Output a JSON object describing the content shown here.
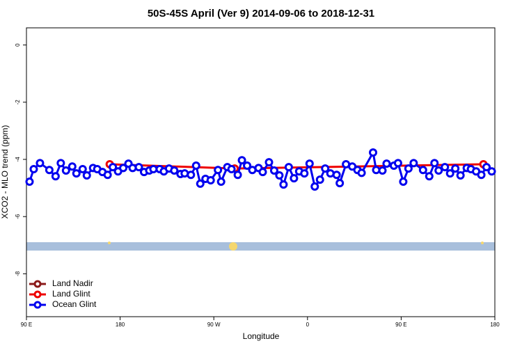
{
  "chart_data": {
    "type": "line",
    "title": "50S-45S April (Ver 9)   2014-09-06 to 2018-12-31",
    "x_label": "Longitude",
    "y_label": "XCO2 - MLO trend (ppm)",
    "xlim": [
      90,
      540
    ],
    "xticks": [
      {
        "value": 90,
        "label": "90 E"
      },
      {
        "value": 180,
        "label": "180"
      },
      {
        "value": 270,
        "label": "90 W"
      },
      {
        "value": 360,
        "label": "0"
      },
      {
        "value": 450,
        "label": "90 E"
      },
      {
        "value": 540,
        "label": "180"
      }
    ],
    "ylim": [
      -9.5,
      0.6
    ],
    "yticks": [
      0,
      -2,
      -4,
      -6,
      -8
    ],
    "legend": "bottom-left",
    "series": [
      {
        "name": "Land Nadir",
        "color": "#8b1a1a",
        "x": [],
        "values": []
      },
      {
        "name": "Land Glint",
        "color": "#ee0000",
        "x": [
          170,
          290,
          529
        ],
        "values": [
          -4.17,
          -4.32,
          -4.17
        ]
      },
      {
        "name": "Ocean Glint",
        "color": "#0000ee",
        "x": [
          93,
          97,
          103,
          112,
          118,
          123,
          128,
          134,
          138,
          144,
          148,
          154,
          158,
          163,
          168,
          173,
          178,
          183,
          188,
          192,
          198,
          203,
          208,
          212,
          218,
          222,
          227,
          232,
          238,
          242,
          248,
          253,
          257,
          262,
          267,
          274,
          277,
          283,
          287,
          293,
          297,
          302,
          307,
          313,
          317,
          323,
          328,
          333,
          337,
          342,
          347,
          352,
          357,
          362,
          367,
          372,
          377,
          382,
          388,
          391,
          397,
          403,
          408,
          412,
          423,
          426,
          432,
          436,
          443,
          447,
          452,
          457,
          462,
          471,
          477,
          482,
          486,
          492,
          497,
          502,
          507,
          513,
          517,
          522,
          527,
          532,
          537
        ],
        "values": [
          -4.78,
          -4.34,
          -4.13,
          -4.37,
          -4.59,
          -4.13,
          -4.39,
          -4.25,
          -4.49,
          -4.34,
          -4.56,
          -4.3,
          -4.34,
          -4.44,
          -4.54,
          -4.27,
          -4.42,
          -4.3,
          -4.15,
          -4.3,
          -4.27,
          -4.44,
          -4.39,
          -4.34,
          -4.34,
          -4.42,
          -4.32,
          -4.39,
          -4.51,
          -4.49,
          -4.54,
          -4.22,
          -4.85,
          -4.68,
          -4.73,
          -4.37,
          -4.78,
          -4.27,
          -4.34,
          -4.54,
          -4.03,
          -4.22,
          -4.37,
          -4.3,
          -4.44,
          -4.1,
          -4.39,
          -4.56,
          -4.88,
          -4.27,
          -4.66,
          -4.42,
          -4.49,
          -4.15,
          -4.95,
          -4.71,
          -4.32,
          -4.49,
          -4.54,
          -4.83,
          -4.17,
          -4.25,
          -4.37,
          -4.47,
          -3.76,
          -4.37,
          -4.39,
          -4.15,
          -4.22,
          -4.13,
          -4.78,
          -4.32,
          -4.13,
          -4.37,
          -4.59,
          -4.13,
          -4.39,
          -4.27,
          -4.49,
          -4.32,
          -4.56,
          -4.3,
          -4.34,
          -4.42,
          -4.54,
          -4.27,
          -4.42
        ]
      }
    ]
  }
}
